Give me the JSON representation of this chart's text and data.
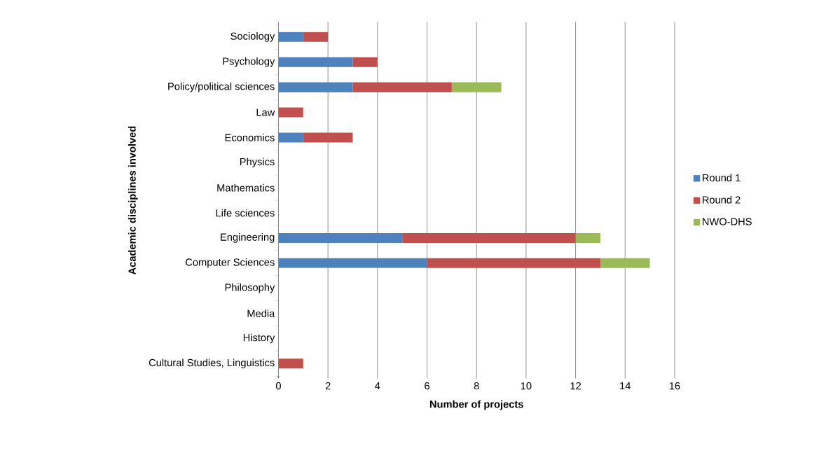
{
  "chart_data": {
    "type": "bar",
    "orientation": "horizontal",
    "stacked": true,
    "xlabel": "Number of projects",
    "ylabel": "Academic disciplines involved",
    "categories": [
      "Sociology",
      "Psychology",
      "Policy/political sciences",
      "Law",
      "Economics",
      "Physics",
      "Mathematics",
      "Life sciences",
      "Engineering",
      "Computer Sciences",
      "Philosophy",
      "Media",
      "History",
      "Cultural Studies, Linguistics"
    ],
    "series": [
      {
        "name": "Round 1",
        "color": "#4f81bd",
        "values": [
          1,
          3,
          3,
          0,
          1,
          0,
          0,
          0,
          5,
          6,
          0,
          0,
          0,
          0
        ]
      },
      {
        "name": "Round 2",
        "color": "#c0504d",
        "values": [
          1,
          1,
          4,
          1,
          2,
          0,
          0,
          0,
          7,
          7,
          0,
          0,
          0,
          1
        ]
      },
      {
        "name": "NWO-DHS",
        "color": "#9bbb59",
        "values": [
          0,
          0,
          2,
          0,
          0,
          0,
          0,
          0,
          1,
          2,
          0,
          0,
          0,
          0
        ]
      }
    ],
    "xlim": [
      0,
      16
    ],
    "xticks": [
      0,
      2,
      4,
      6,
      8,
      10,
      12,
      14,
      16
    ],
    "grid": "x",
    "legend": "right"
  }
}
